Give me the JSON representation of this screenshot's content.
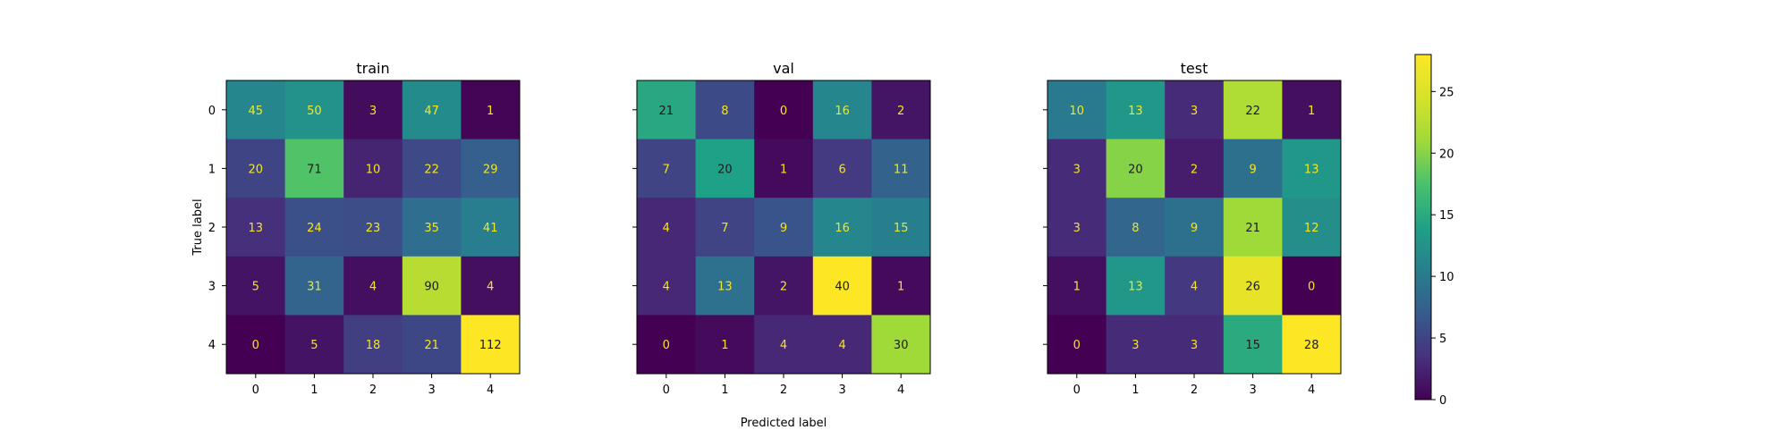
{
  "chart_data": {
    "type": "heatmap",
    "xlabel": "Predicted label",
    "ylabel": "True label",
    "x_ticks": [
      "0",
      "1",
      "2",
      "3",
      "4"
    ],
    "y_ticks": [
      "0",
      "1",
      "2",
      "3",
      "4"
    ],
    "colormap": "viridis",
    "colorbar": {
      "range": [
        0,
        28
      ],
      "ticks": [
        "0",
        "5",
        "10",
        "15",
        "20",
        "25"
      ]
    },
    "text_colors": {
      "light_text": "#f5e61f",
      "dark_text": "#1a1a1a"
    },
    "panels": [
      {
        "title": "train",
        "vmax": 112,
        "matrix": [
          [
            45,
            50,
            3,
            47,
            1
          ],
          [
            20,
            71,
            10,
            22,
            29
          ],
          [
            13,
            24,
            23,
            35,
            41
          ],
          [
            5,
            31,
            4,
            90,
            4
          ],
          [
            0,
            5,
            18,
            21,
            112
          ]
        ]
      },
      {
        "title": "val",
        "vmax": 40,
        "matrix": [
          [
            21,
            8,
            0,
            16,
            2
          ],
          [
            7,
            20,
            1,
            6,
            11
          ],
          [
            4,
            7,
            9,
            16,
            15
          ],
          [
            4,
            13,
            2,
            40,
            1
          ],
          [
            0,
            1,
            4,
            4,
            30
          ]
        ]
      },
      {
        "title": "test",
        "vmax": 28,
        "matrix": [
          [
            10,
            13,
            3,
            22,
            1
          ],
          [
            3,
            20,
            2,
            9,
            13
          ],
          [
            3,
            8,
            9,
            21,
            12
          ],
          [
            1,
            13,
            4,
            26,
            0
          ],
          [
            0,
            3,
            3,
            15,
            28
          ]
        ]
      }
    ]
  }
}
